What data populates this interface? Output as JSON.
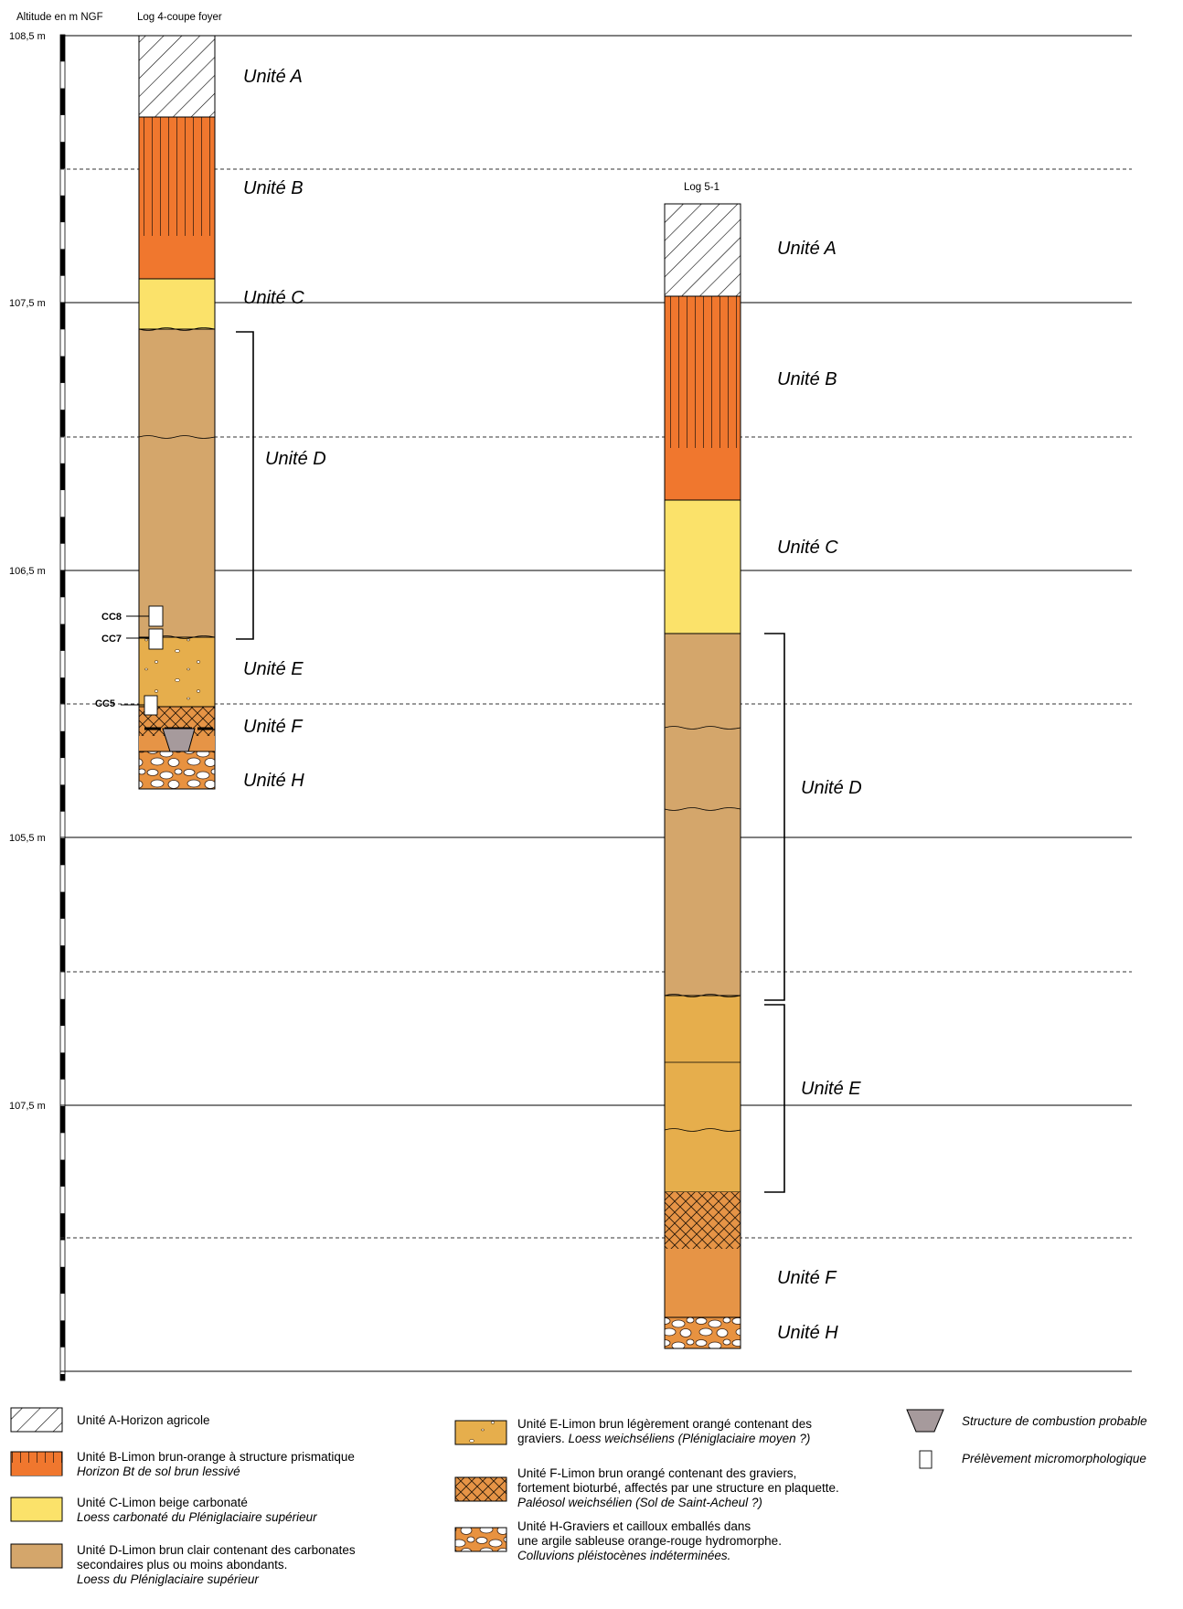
{
  "header": {
    "axis_label": "Altitude en m NGF"
  },
  "axis_ticks": [
    "108,5 m",
    "107,5 m",
    "106,5 m",
    "105,5 m",
    "107,5 m"
  ],
  "logs": [
    {
      "title": "Log 4-coupe foyer",
      "units": {
        "A": "Unité A",
        "B": "Unité B",
        "C": "Unité C",
        "D": "Unité D",
        "E": "Unité E",
        "F": "Unité F",
        "H": "Unité H"
      },
      "samples": [
        "CC8",
        "CC7",
        "CC5"
      ]
    },
    {
      "title": "Log 5-1",
      "units": {
        "A": "Unité A",
        "B": "Unité B",
        "C": "Unité C",
        "D": "Unité D",
        "E": "Unité E",
        "F": "Unité F",
        "H": "Unité H"
      }
    }
  ],
  "legend": {
    "A": {
      "line1": "Unité A-Horizon agricole"
    },
    "B": {
      "line1": "Unité B-Limon brun-orange à structure prismatique",
      "line2": "Horizon Bt de sol brun lessivé"
    },
    "C": {
      "line1": "Unité C-Limon beige carbonaté",
      "line2": "Loess carbonaté du Pléniglaciaire supérieur"
    },
    "D": {
      "line1": "Unité D-Limon brun clair contenant des carbonates",
      "line2": "secondaires plus ou moins abondants.",
      "line3": "Loess du Pléniglaciaire supérieur"
    },
    "E": {
      "line1": "Unité E-Limon brun légèrement orangé contenant des",
      "line2a": "graviers. ",
      "line2b": "Loess weichséliens (Pléniglaciaire moyen ?)"
    },
    "F": {
      "line1": "Unité F-Limon brun orangé contenant des graviers,",
      "line2": "fortement bioturbé, affectés par une structure en plaquette.",
      "line3": "Paléosol weichsélien (Sol de Saint-Acheul ?)"
    },
    "H": {
      "line1": "Unité H-Graviers et cailloux emballés dans",
      "line2": "une argile sableuse orange-rouge hydromorphe.",
      "line3": "Colluvions pléistocènes indéterminées."
    },
    "combustion": "Structure de combustion probable",
    "sample": "Prélèvement micromorphologique"
  },
  "colors": {
    "unit_B": "#f0772e",
    "unit_C": "#fbe26a",
    "unit_D": "#d4a66b",
    "unit_E": "#e6ae4c",
    "unit_F": "#e69446",
    "unit_H": "#e89240",
    "combustion": "#a69a9c"
  }
}
